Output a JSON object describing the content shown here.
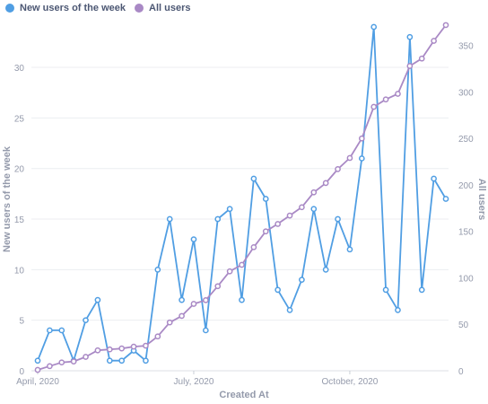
{
  "chart_data": {
    "type": "line",
    "xlabel": "Created At",
    "x_ticks": [
      "April, 2020",
      "July, 2020",
      "October, 2020"
    ],
    "y_left": {
      "label": "New users of the week",
      "ticks": [
        0,
        5,
        10,
        15,
        20,
        25,
        30
      ],
      "range": [
        0,
        34
      ]
    },
    "y_right": {
      "label": "All users",
      "ticks": [
        0,
        50,
        100,
        150,
        200,
        250,
        300,
        350
      ],
      "range": [
        0,
        370
      ]
    },
    "legend_position": "top-left",
    "grid": true,
    "series": [
      {
        "name": "New users of the week",
        "color": "#509ee3",
        "axis": "left",
        "values": [
          1,
          4,
          4,
          1,
          5,
          7,
          1,
          1,
          2,
          1,
          10,
          15,
          7,
          13,
          4,
          15,
          16,
          7,
          19,
          17,
          8,
          6,
          9,
          16,
          10,
          15,
          12,
          21,
          34,
          8,
          6,
          33,
          8,
          19,
          17
        ]
      },
      {
        "name": "All users",
        "color": "#a989c5",
        "axis": "right",
        "values": [
          1,
          5,
          9,
          10,
          15,
          22,
          23,
          24,
          26,
          27,
          37,
          52,
          59,
          72,
          76,
          91,
          107,
          114,
          133,
          150,
          158,
          167,
          176,
          192,
          202,
          217,
          229,
          250,
          284,
          292,
          298,
          328,
          336,
          355,
          372
        ]
      }
    ]
  }
}
